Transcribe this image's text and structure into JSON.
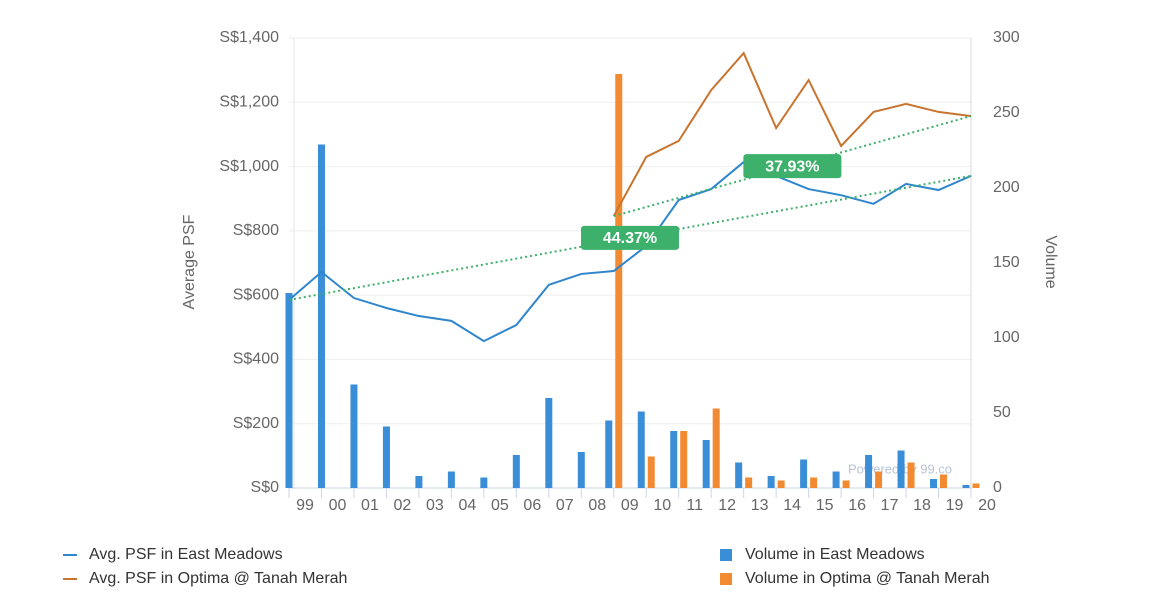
{
  "chart_data": {
    "type": "combo",
    "y_label": "Average PSF",
    "y2_label": "Volume",
    "watermark": "Powered by 99.co",
    "grid": true,
    "categories": [
      "99",
      "00",
      "01",
      "02",
      "03",
      "04",
      "05",
      "06",
      "07",
      "08",
      "09",
      "10",
      "11",
      "12",
      "13",
      "14",
      "15",
      "16",
      "17",
      "18",
      "19",
      "20"
    ],
    "ylim": [
      0,
      1400
    ],
    "yticks": [
      {
        "value": 0,
        "label": "S$0"
      },
      {
        "value": 200,
        "label": "S$200"
      },
      {
        "value": 400,
        "label": "S$400"
      },
      {
        "value": 600,
        "label": "S$600"
      },
      {
        "value": 800,
        "label": "S$800"
      },
      {
        "value": 1000,
        "label": "S$1,000"
      },
      {
        "value": 1200,
        "label": "S$1,200"
      },
      {
        "value": 1400,
        "label": "S$1,400"
      }
    ],
    "y2lim": [
      0,
      300
    ],
    "y2ticks": [
      0,
      50,
      100,
      150,
      200,
      250,
      300
    ],
    "series": [
      {
        "name": "Avg. PSF in East Meadows",
        "type": "line",
        "color": "#2f86cc",
        "trend_color": "#3db06b",
        "trend_label": "44.37%",
        "values": [
          585,
          672,
          591,
          560,
          535,
          520,
          457,
          507,
          632,
          666,
          675,
          753,
          896,
          930,
          1014,
          971,
          930,
          911,
          884,
          946,
          927,
          971
        ]
      },
      {
        "name": "Avg. PSF in Optima @ Tanah Merah",
        "type": "line",
        "color": "#c8742e",
        "trend_color": "#3db06b",
        "trend_label": "37.93%",
        "values": [
          null,
          null,
          null,
          null,
          null,
          null,
          null,
          null,
          null,
          null,
          846,
          1030,
          1080,
          1238,
          1353,
          1120,
          1269,
          1064,
          1170,
          1195,
          1170,
          1157
        ]
      },
      {
        "name": "Volume in East Meadows",
        "type": "bar",
        "axis": "y2",
        "color": "#3a8ed8",
        "values": [
          130,
          229,
          69,
          41,
          8,
          11,
          7,
          22,
          60,
          24,
          45,
          51,
          38,
          32,
          17,
          8,
          19,
          11,
          22,
          25,
          6,
          2
        ]
      },
      {
        "name": "Volume in Optima @ Tanah Merah",
        "type": "bar",
        "axis": "y2",
        "color": "#f28a32",
        "values": [
          null,
          null,
          null,
          null,
          null,
          null,
          null,
          null,
          null,
          null,
          276,
          21,
          38,
          53,
          7,
          5,
          7,
          5,
          11,
          17,
          9,
          3
        ]
      }
    ]
  }
}
